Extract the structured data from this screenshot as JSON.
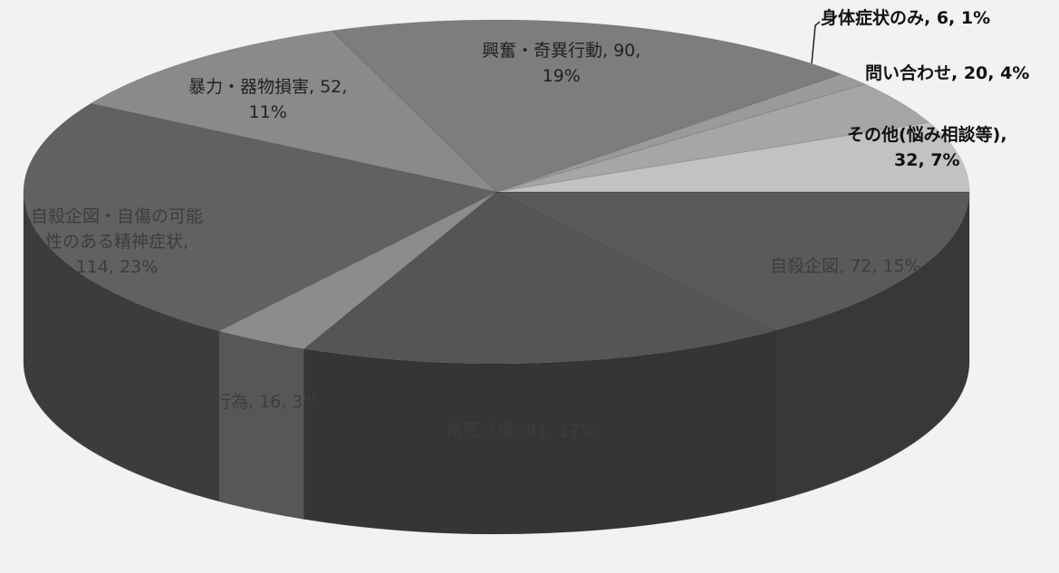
{
  "chart_data": {
    "type": "pie",
    "style": "3d",
    "slices": [
      {
        "name": "自殺企図",
        "value": 72,
        "percent": "15%",
        "color": "#5a5a5a",
        "label": "自殺企図, 72, 15%"
      },
      {
        "name": "希死念慮",
        "value": 81,
        "percent": "17%",
        "color": "#555555",
        "label": "希死念慮, 81, 17%"
      },
      {
        "name": "自傷行為",
        "value": 16,
        "percent": "3%",
        "color": "#8c8c8c",
        "label": "自傷行為, 16, 3%"
      },
      {
        "name": "自殺企図・自傷の可能性のある精神症状",
        "value": 114,
        "percent": "23%",
        "color": "#616161",
        "label_lines": [
          "自殺企図・自傷の可能",
          "性のある精神症状,",
          "114, 23%"
        ]
      },
      {
        "name": "暴力・器物損害",
        "value": 52,
        "percent": "11%",
        "color": "#8a8a8a",
        "label_lines": [
          "暴力・器物損害, 52,",
          "11%"
        ]
      },
      {
        "name": "興奮・奇異行動",
        "value": 90,
        "percent": "19%",
        "color": "#7d7d7d",
        "label_lines": [
          "興奮・奇異行動, 90,",
          "19%"
        ]
      },
      {
        "name": "身体症状のみ",
        "value": 6,
        "percent": "1%",
        "color": "#9a9a9a",
        "label": "身体症状のみ, 6, 1%"
      },
      {
        "name": "問い合わせ",
        "value": 20,
        "percent": "4%",
        "color": "#a6a6a6",
        "label": "問い合わせ, 20, 4%"
      },
      {
        "name": "その他(悩み相談等)",
        "value": 32,
        "percent": "7%",
        "color": "#c2c2c2",
        "label_lines": [
          "その他(悩み相談等),",
          "32, 7%"
        ]
      }
    ]
  }
}
